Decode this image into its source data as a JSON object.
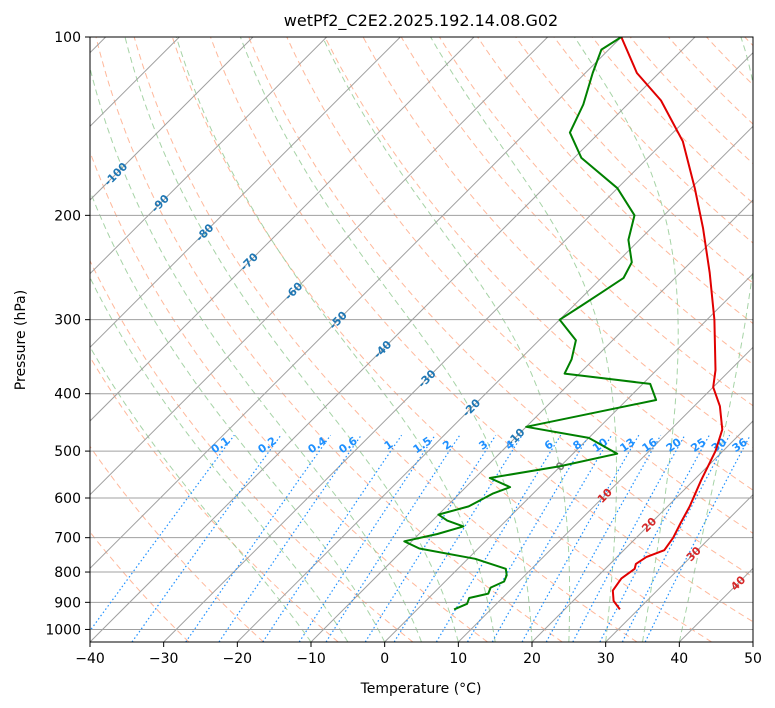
{
  "chart_data": {
    "type": "line",
    "title": "wetPf2_C2E2.2025.192.14.08.G02",
    "xlabel": "Temperature (°C)",
    "ylabel": "Pressure (hPa)",
    "xlim": [
      -40,
      50
    ],
    "ylim": [
      1050,
      100
    ],
    "y_scale": "log",
    "skew": true,
    "grid": true,
    "x_ticks": [
      "−40",
      "−30",
      "−20",
      "−10",
      "0",
      "10",
      "20",
      "30",
      "40",
      "50"
    ],
    "y_ticks": [
      "100",
      "200",
      "300",
      "400",
      "500",
      "600",
      "700",
      "800",
      "900",
      "1000"
    ],
    "series": [
      {
        "color": "#e00000",
        "points": [
          {
            "t": 27.5,
            "p": 925
          },
          {
            "t": 25.5,
            "p": 895
          },
          {
            "t": 24.0,
            "p": 860
          },
          {
            "t": 23.5,
            "p": 820
          },
          {
            "t": 24.0,
            "p": 790
          },
          {
            "t": 23.5,
            "p": 775
          },
          {
            "t": 24.0,
            "p": 755
          },
          {
            "t": 25.5,
            "p": 735
          },
          {
            "t": 25.0,
            "p": 700
          },
          {
            "t": 24.0,
            "p": 660
          },
          {
            "t": 23.0,
            "p": 620
          },
          {
            "t": 21.0,
            "p": 560
          },
          {
            "t": 19.0,
            "p": 500
          },
          {
            "t": 17.0,
            "p": 460
          },
          {
            "t": 13.5,
            "p": 420
          },
          {
            "t": 10.0,
            "p": 390
          },
          {
            "t": 8.0,
            "p": 365
          },
          {
            "t": 1.0,
            "p": 300
          },
          {
            "t": -6.0,
            "p": 250
          },
          {
            "t": -13.0,
            "p": 210
          },
          {
            "t": -19.5,
            "p": 180
          },
          {
            "t": -27.5,
            "p": 150
          },
          {
            "t": -36.0,
            "p": 128
          },
          {
            "t": -43.0,
            "p": 115
          },
          {
            "t": -50.0,
            "p": 100
          }
        ]
      },
      {
        "color": "#008000",
        "points": [
          {
            "t": 5.0,
            "p": 925
          },
          {
            "t": 6.0,
            "p": 905
          },
          {
            "t": 5.5,
            "p": 885
          },
          {
            "t": 7.5,
            "p": 870
          },
          {
            "t": 7.0,
            "p": 850
          },
          {
            "t": 8.0,
            "p": 830
          },
          {
            "t": 7.5,
            "p": 810
          },
          {
            "t": 6.5,
            "p": 790
          },
          {
            "t": 1.0,
            "p": 760
          },
          {
            "t": -8.0,
            "p": 730
          },
          {
            "t": -11.0,
            "p": 710
          },
          {
            "t": -7.5,
            "p": 690
          },
          {
            "t": -5.0,
            "p": 670
          },
          {
            "t": -8.0,
            "p": 655
          },
          {
            "t": -10.0,
            "p": 640
          },
          {
            "t": -7.0,
            "p": 620
          },
          {
            "t": -5.5,
            "p": 590
          },
          {
            "t": -4.0,
            "p": 575
          },
          {
            "t": -8.0,
            "p": 555
          },
          {
            "t": 0.0,
            "p": 530
          },
          {
            "t": 6.0,
            "p": 505
          },
          {
            "t": 0.0,
            "p": 475
          },
          {
            "t": -10.0,
            "p": 455
          },
          {
            "t": -4.0,
            "p": 435
          },
          {
            "t": 4.0,
            "p": 410
          },
          {
            "t": 1.0,
            "p": 385
          },
          {
            "t": -12.0,
            "p": 370
          },
          {
            "t": -13.0,
            "p": 350
          },
          {
            "t": -15.0,
            "p": 325
          },
          {
            "t": -20.0,
            "p": 300
          },
          {
            "t": -19.0,
            "p": 285
          },
          {
            "t": -18.0,
            "p": 270
          },
          {
            "t": -17.0,
            "p": 255
          },
          {
            "t": -18.0,
            "p": 240
          },
          {
            "t": -21.5,
            "p": 220
          },
          {
            "t": -24.0,
            "p": 200
          },
          {
            "t": -30.0,
            "p": 180
          },
          {
            "t": -39.0,
            "p": 160
          },
          {
            "t": -44.0,
            "p": 145
          },
          {
            "t": -46.0,
            "p": 130
          },
          {
            "t": -49.0,
            "p": 115
          },
          {
            "t": -51.0,
            "p": 105
          },
          {
            "t": -50.0,
            "p": 100
          }
        ]
      }
    ],
    "isotherm_labels": [
      "-100",
      "-90",
      "-80",
      "-70",
      "-60",
      "-50",
      "-40",
      "-30",
      "-20",
      "-10",
      "0",
      "10",
      "20",
      "30",
      "40"
    ],
    "mixing_ratio_labels": [
      "0.1",
      "0.2",
      "0.4",
      "0.6",
      "1",
      "1.5",
      "2",
      "3",
      "4",
      "6",
      "8",
      "10",
      "13",
      "16",
      "20",
      "25",
      "30",
      "36"
    ],
    "colors": {
      "temperature": "#e00000",
      "dewpoint": "#008000",
      "isotherm_label_cold": "#1f77b4",
      "isotherm_label_zero": "#7f7f7f",
      "isotherm_label_warm": "#d62728",
      "mixing_ratio": "#1e90ff",
      "dry_adiabat": "#ffa07a",
      "moist_adiabat": "#90c890",
      "grid": "#a0a0a0"
    }
  }
}
